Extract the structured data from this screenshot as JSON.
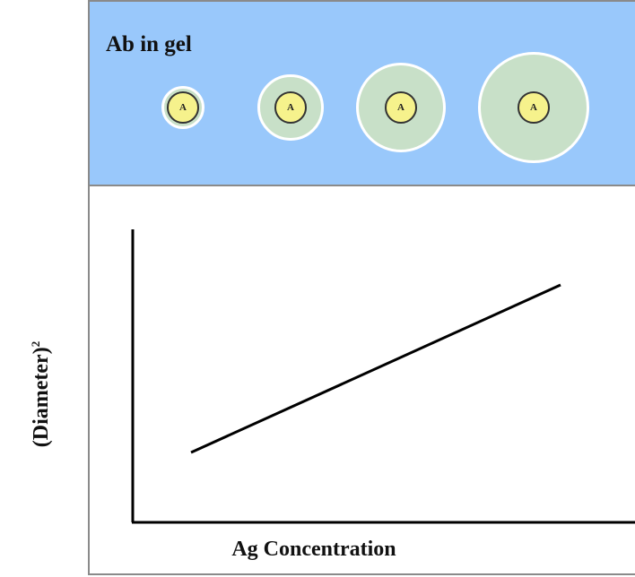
{
  "gel_panel": {
    "label": "Ab in gel",
    "background_color": "#99c8fb",
    "precipitin_ring_color": "#c8e0c8",
    "well_color": "#f6f28c",
    "wells": [
      {
        "marker": "A"
      },
      {
        "marker": "A"
      },
      {
        "marker": "A"
      },
      {
        "marker": "A"
      }
    ]
  },
  "chart_data": {
    "type": "line",
    "xlabel": "Ag Concentration",
    "ylabel": "(Diameter)",
    "ylabel_superscript": "2",
    "axis_ticks": false,
    "grid": false,
    "series": [
      {
        "line_color": "#000000",
        "points": [
          [
            0,
            0
          ],
          [
            1,
            1
          ]
        ]
      }
    ]
  }
}
